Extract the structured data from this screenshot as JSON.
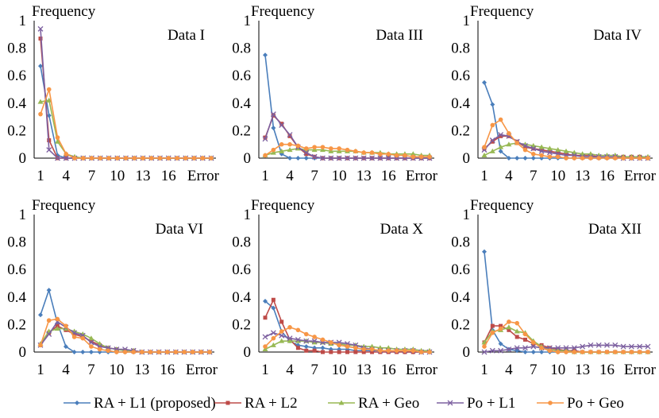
{
  "legend": [
    {
      "label": "RA + L1 (proposed)",
      "color": "#4a7ebb",
      "marker": "diamond"
    },
    {
      "label": "RA + L2",
      "color": "#be4b48",
      "marker": "square"
    },
    {
      "label": "RA + Geo",
      "color": "#98b954",
      "marker": "triangle"
    },
    {
      "label": "Po + L1",
      "color": "#7d60a0",
      "marker": "x"
    },
    {
      "label": "Po + Geo",
      "color": "#f79646",
      "marker": "circle"
    }
  ],
  "chart_data": [
    {
      "type": "line",
      "title": "Data I",
      "ylabel": "Frequency",
      "ylim": [
        0,
        1
      ],
      "yticks": [
        "0",
        "0.2",
        "0.4",
        "0.6",
        "0.8",
        "1"
      ],
      "xticks": [
        "1",
        "4",
        "7",
        "10",
        "13",
        "16",
        "Error"
      ],
      "categories": [
        "1",
        "2",
        "3",
        "4",
        "5",
        "6",
        "7",
        "8",
        "9",
        "10",
        "11",
        "12",
        "13",
        "14",
        "15",
        "16",
        "17",
        "18",
        "19",
        "20",
        "Error"
      ],
      "series": [
        {
          "name": "RA + L1 (proposed)",
          "values": [
            0.67,
            0.31,
            0.02,
            0,
            0,
            0,
            0,
            0,
            0,
            0,
            0,
            0,
            0,
            0,
            0,
            0,
            0,
            0,
            0,
            0,
            0
          ]
        },
        {
          "name": "RA + L2",
          "values": [
            0.87,
            0.13,
            0,
            0,
            0,
            0,
            0,
            0,
            0,
            0,
            0,
            0,
            0,
            0,
            0,
            0,
            0,
            0,
            0,
            0,
            0
          ]
        },
        {
          "name": "RA + Geo",
          "values": [
            0.41,
            0.42,
            0.12,
            0.03,
            0.01,
            0,
            0,
            0,
            0,
            0,
            0,
            0,
            0,
            0,
            0,
            0,
            0,
            0,
            0,
            0,
            0
          ]
        },
        {
          "name": "Po + L1",
          "values": [
            0.94,
            0.06,
            0,
            0,
            0,
            0,
            0,
            0,
            0,
            0,
            0,
            0,
            0,
            0,
            0,
            0,
            0,
            0,
            0,
            0,
            0
          ]
        },
        {
          "name": "Po + Geo",
          "values": [
            0.32,
            0.5,
            0.15,
            0.03,
            0,
            0,
            0,
            0,
            0,
            0,
            0,
            0,
            0,
            0,
            0,
            0,
            0,
            0,
            0,
            0,
            0
          ]
        }
      ]
    },
    {
      "type": "line",
      "title": "Data III",
      "ylabel": "Frequency",
      "ylim": [
        0,
        1
      ],
      "yticks": [
        "0",
        "0.2",
        "0.4",
        "0.6",
        "0.8",
        "1"
      ],
      "xticks": [
        "1",
        "4",
        "7",
        "10",
        "13",
        "16",
        "Error"
      ],
      "categories": [
        "1",
        "2",
        "3",
        "4",
        "5",
        "6",
        "7",
        "8",
        "9",
        "10",
        "11",
        "12",
        "13",
        "14",
        "15",
        "16",
        "17",
        "18",
        "19",
        "20",
        "Error"
      ],
      "series": [
        {
          "name": "RA + L1 (proposed)",
          "values": [
            0.75,
            0.22,
            0.03,
            0,
            0,
            0,
            0,
            0,
            0,
            0,
            0,
            0,
            0,
            0,
            0,
            0,
            0,
            0,
            0,
            0,
            0
          ]
        },
        {
          "name": "RA + L2",
          "values": [
            0.15,
            0.31,
            0.25,
            0.16,
            0.08,
            0.03,
            0.01,
            0,
            0,
            0,
            0,
            0,
            0,
            0,
            0,
            0,
            0,
            0,
            0,
            0,
            0
          ]
        },
        {
          "name": "RA + Geo",
          "values": [
            0.02,
            0.04,
            0.05,
            0.06,
            0.07,
            0.06,
            0.06,
            0.06,
            0.05,
            0.05,
            0.05,
            0.05,
            0.04,
            0.04,
            0.04,
            0.03,
            0.03,
            0.03,
            0.03,
            0.02,
            0.02
          ]
        },
        {
          "name": "Po + L1",
          "values": [
            0.14,
            0.32,
            0.24,
            0.17,
            0.08,
            0.04,
            0.01,
            0,
            0,
            0,
            0,
            0,
            0,
            0,
            0,
            0,
            0,
            0,
            0,
            0,
            0
          ]
        },
        {
          "name": "Po + Geo",
          "values": [
            0.02,
            0.06,
            0.1,
            0.1,
            0.09,
            0.07,
            0.08,
            0.08,
            0.07,
            0.07,
            0.06,
            0.05,
            0.04,
            0.04,
            0.03,
            0.03,
            0.02,
            0.02,
            0.01,
            0.01,
            0.01
          ]
        }
      ]
    },
    {
      "type": "line",
      "title": "Data IV",
      "ylabel": "Frequency",
      "ylim": [
        0,
        1
      ],
      "yticks": [
        "0",
        "0.2",
        "0.4",
        "0.6",
        "0.8",
        "1"
      ],
      "xticks": [
        "1",
        "4",
        "7",
        "10",
        "13",
        "16",
        "Error"
      ],
      "categories": [
        "1",
        "2",
        "3",
        "4",
        "5",
        "6",
        "7",
        "8",
        "9",
        "10",
        "11",
        "12",
        "13",
        "14",
        "15",
        "16",
        "17",
        "18",
        "19",
        "20",
        "Error"
      ],
      "series": [
        {
          "name": "RA + L1 (proposed)",
          "values": [
            0.55,
            0.39,
            0.05,
            0,
            0,
            0,
            0,
            0,
            0,
            0,
            0,
            0,
            0,
            0,
            0,
            0,
            0,
            0,
            0,
            0,
            0
          ]
        },
        {
          "name": "RA + L2",
          "values": [
            0.07,
            0.12,
            0.16,
            0.16,
            0.12,
            0.08,
            0.07,
            0.06,
            0.05,
            0.04,
            0.03,
            0.02,
            0.02,
            0.02,
            0.01,
            0.01,
            0.01,
            0.01,
            0.01,
            0.01,
            0
          ]
        },
        {
          "name": "RA + Geo",
          "values": [
            0.02,
            0.05,
            0.08,
            0.1,
            0.11,
            0.1,
            0.09,
            0.08,
            0.07,
            0.06,
            0.05,
            0.04,
            0.03,
            0.03,
            0.02,
            0.02,
            0.02,
            0.01,
            0.01,
            0.01,
            0.01
          ]
        },
        {
          "name": "Po + L1",
          "values": [
            0.06,
            0.13,
            0.17,
            0.16,
            0.12,
            0.09,
            0.07,
            0.05,
            0.04,
            0.03,
            0.02,
            0.02,
            0.01,
            0.01,
            0.01,
            0.01,
            0.01,
            0,
            0,
            0,
            0
          ]
        },
        {
          "name": "Po + Geo",
          "values": [
            0.08,
            0.24,
            0.28,
            0.18,
            0.11,
            0.06,
            0.03,
            0.02,
            0.01,
            0.01,
            0,
            0,
            0,
            0,
            0,
            0,
            0,
            0,
            0,
            0,
            0
          ]
        }
      ]
    },
    {
      "type": "line",
      "title": "Data VI",
      "ylabel": "Frequency",
      "ylim": [
        0,
        1
      ],
      "yticks": [
        "0",
        "0.2",
        "0.4",
        "0.6",
        "0.8",
        "1"
      ],
      "xticks": [
        "1",
        "4",
        "7",
        "10",
        "13",
        "16",
        "Error"
      ],
      "categories": [
        "1",
        "2",
        "3",
        "4",
        "5",
        "6",
        "7",
        "8",
        "9",
        "10",
        "11",
        "12",
        "13",
        "14",
        "15",
        "16",
        "17",
        "18",
        "19",
        "20",
        "Error"
      ],
      "series": [
        {
          "name": "RA + L1 (proposed)",
          "values": [
            0.27,
            0.45,
            0.21,
            0.04,
            0,
            0,
            0,
            0,
            0,
            0,
            0,
            0,
            0,
            0,
            0,
            0,
            0,
            0,
            0,
            0,
            0
          ]
        },
        {
          "name": "RA + L2",
          "values": [
            0.05,
            0.14,
            0.19,
            0.16,
            0.13,
            0.11,
            0.08,
            0.05,
            0.03,
            0.02,
            0.01,
            0.01,
            0,
            0,
            0,
            0,
            0,
            0,
            0,
            0,
            0
          ]
        },
        {
          "name": "RA + Geo",
          "values": [
            0.06,
            0.15,
            0.17,
            0.17,
            0.15,
            0.13,
            0.1,
            0.06,
            0.03,
            0.02,
            0.01,
            0.01,
            0,
            0,
            0,
            0,
            0,
            0,
            0,
            0,
            0
          ]
        },
        {
          "name": "Po + L1",
          "values": [
            0.05,
            0.13,
            0.22,
            0.18,
            0.14,
            0.12,
            0.07,
            0.04,
            0.03,
            0.02,
            0.02,
            0.01,
            0,
            0,
            0,
            0,
            0,
            0,
            0,
            0,
            0
          ]
        },
        {
          "name": "Po + Geo",
          "values": [
            0.05,
            0.23,
            0.24,
            0.19,
            0.11,
            0.1,
            0.04,
            0.02,
            0.01,
            0,
            0,
            0,
            0,
            0,
            0,
            0,
            0,
            0,
            0,
            0,
            0
          ]
        }
      ]
    },
    {
      "type": "line",
      "title": "Data X",
      "ylabel": "Frequency",
      "ylim": [
        0,
        1
      ],
      "yticks": [
        "0",
        "0.2",
        "0.4",
        "0.6",
        "0.8",
        "1"
      ],
      "xticks": [
        "1",
        "4",
        "7",
        "10",
        "13",
        "16",
        "Error"
      ],
      "categories": [
        "1",
        "2",
        "3",
        "4",
        "5",
        "6",
        "7",
        "8",
        "9",
        "10",
        "11",
        "12",
        "13",
        "14",
        "15",
        "16",
        "17",
        "18",
        "19",
        "20",
        "Error"
      ],
      "series": [
        {
          "name": "RA + L1 (proposed)",
          "values": [
            0.37,
            0.32,
            0.15,
            0.08,
            0.05,
            0.04,
            0.03,
            0.03,
            0.02,
            0.02,
            0.02,
            0.01,
            0.01,
            0.01,
            0.01,
            0.01,
            0.01,
            0,
            0,
            0,
            0
          ]
        },
        {
          "name": "RA + L2",
          "values": [
            0.25,
            0.38,
            0.22,
            0.09,
            0.03,
            0.01,
            0.01,
            0,
            0,
            0,
            0,
            0,
            0,
            0,
            0,
            0,
            0,
            0,
            0,
            0,
            0
          ]
        },
        {
          "name": "RA + Geo",
          "values": [
            0.02,
            0.05,
            0.08,
            0.08,
            0.08,
            0.08,
            0.07,
            0.07,
            0.06,
            0.06,
            0.05,
            0.05,
            0.04,
            0.04,
            0.03,
            0.03,
            0.02,
            0.02,
            0.02,
            0.01,
            0.01
          ]
        },
        {
          "name": "Po + L1",
          "values": [
            0.11,
            0.14,
            0.12,
            0.1,
            0.09,
            0.08,
            0.08,
            0.07,
            0.07,
            0.07,
            0.06,
            0.05,
            0.03,
            0.02,
            0.01,
            0.01,
            0.01,
            0.01,
            0.01,
            0,
            0
          ]
        },
        {
          "name": "Po + Geo",
          "values": [
            0.04,
            0.1,
            0.15,
            0.18,
            0.16,
            0.13,
            0.11,
            0.09,
            0.07,
            0.05,
            0.04,
            0.03,
            0.02,
            0.02,
            0.01,
            0.01,
            0.01,
            0.01,
            0.01,
            0,
            0
          ]
        }
      ]
    },
    {
      "type": "line",
      "title": "Data XII",
      "ylabel": "Frequency",
      "ylim": [
        0,
        1
      ],
      "yticks": [
        "0",
        "0.2",
        "0.4",
        "0.6",
        "0.8",
        "1"
      ],
      "xticks": [
        "1",
        "4",
        "7",
        "10",
        "13",
        "16",
        "Error"
      ],
      "categories": [
        "1",
        "2",
        "3",
        "4",
        "5",
        "6",
        "7",
        "8",
        "9",
        "10",
        "11",
        "12",
        "13",
        "14",
        "15",
        "16",
        "17",
        "18",
        "19",
        "20",
        "Error"
      ],
      "series": [
        {
          "name": "RA + L1 (proposed)",
          "values": [
            0.73,
            0.16,
            0.06,
            0.02,
            0.01,
            0,
            0,
            0,
            0,
            0,
            0,
            0,
            0,
            0,
            0,
            0,
            0,
            0,
            0,
            0,
            0
          ]
        },
        {
          "name": "RA + L2",
          "values": [
            0.07,
            0.19,
            0.19,
            0.16,
            0.11,
            0.09,
            0.06,
            0.05,
            0.03,
            0.02,
            0.01,
            0.01,
            0,
            0,
            0,
            0,
            0,
            0,
            0,
            0,
            0
          ]
        },
        {
          "name": "RA + Geo",
          "values": [
            0.07,
            0.15,
            0.16,
            0.18,
            0.15,
            0.14,
            0.08,
            0.04,
            0.02,
            0.01,
            0.01,
            0,
            0,
            0,
            0,
            0,
            0,
            0,
            0,
            0,
            0
          ]
        },
        {
          "name": "Po + L1",
          "values": [
            0,
            0.01,
            0.01,
            0.02,
            0.03,
            0.03,
            0.04,
            0.03,
            0.03,
            0.03,
            0.03,
            0.03,
            0.04,
            0.05,
            0.05,
            0.05,
            0.05,
            0.04,
            0.04,
            0.04,
            0.04
          ]
        },
        {
          "name": "Po + Geo",
          "values": [
            0.04,
            0.14,
            0.17,
            0.22,
            0.21,
            0.13,
            0.07,
            0.03,
            0.01,
            0,
            0,
            0,
            0,
            0,
            0,
            0,
            0,
            0,
            0,
            0,
            0
          ]
        }
      ]
    }
  ]
}
